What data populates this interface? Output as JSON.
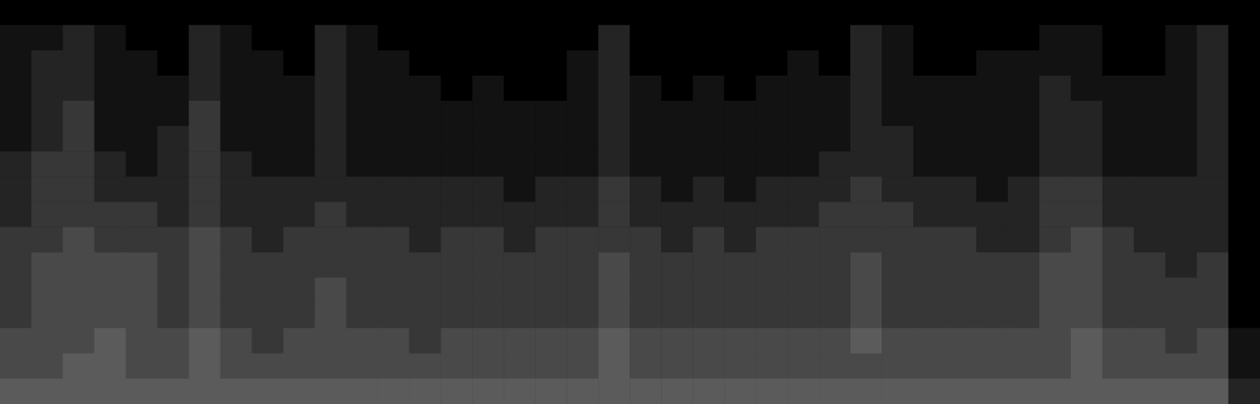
{
  "chart_data": {
    "type": "heatmap",
    "tick_labels": false,
    "grid": false,
    "color_range": [
      0,
      14
    ],
    "cells": [
      [
        0,
        0,
        0,
        0,
        0,
        0,
        0,
        0,
        0,
        0,
        0,
        0,
        0,
        0,
        0,
        0,
        0,
        0,
        0,
        0,
        0,
        0,
        0,
        0,
        0,
        0,
        0,
        0,
        0,
        0,
        0,
        0,
        0,
        0,
        0,
        0,
        0,
        0,
        0,
        0
      ],
      [
        1,
        1,
        2,
        1,
        0,
        0,
        2,
        1,
        0,
        0,
        2,
        1,
        0,
        0,
        0,
        0,
        0,
        0,
        0,
        2,
        0,
        0,
        0,
        0,
        0,
        0,
        0,
        2,
        1,
        0,
        0,
        0,
        0,
        1,
        1,
        0,
        0,
        1,
        2,
        0
      ],
      [
        1,
        2,
        2,
        1,
        1,
        0,
        2,
        1,
        1,
        0,
        2,
        1,
        1,
        0,
        0,
        0,
        0,
        0,
        1,
        2,
        0,
        0,
        0,
        0,
        0,
        1,
        0,
        2,
        1,
        0,
        0,
        1,
        1,
        1,
        1,
        0,
        0,
        1,
        2,
        0
      ],
      [
        1,
        2,
        2,
        1,
        1,
        1,
        2,
        1,
        1,
        1,
        2,
        1,
        1,
        1,
        0,
        1,
        0,
        0,
        1,
        2,
        1,
        0,
        1,
        0,
        1,
        1,
        1,
        2,
        1,
        1,
        1,
        1,
        1,
        2,
        1,
        1,
        1,
        1,
        2,
        0
      ],
      [
        1,
        2,
        3,
        1,
        1,
        1,
        3,
        1,
        1,
        1,
        2,
        1,
        1,
        1,
        1,
        1,
        1,
        1,
        1,
        2,
        1,
        1,
        1,
        1,
        1,
        1,
        1,
        2,
        1,
        1,
        1,
        1,
        1,
        2,
        2,
        1,
        1,
        1,
        2,
        0
      ],
      [
        1,
        2,
        3,
        1,
        1,
        2,
        3,
        1,
        1,
        1,
        2,
        1,
        1,
        1,
        1,
        1,
        1,
        1,
        1,
        2,
        1,
        1,
        1,
        1,
        1,
        1,
        1,
        2,
        2,
        1,
        1,
        1,
        1,
        2,
        2,
        1,
        1,
        1,
        2,
        0
      ],
      [
        2,
        3,
        3,
        2,
        1,
        2,
        3,
        2,
        1,
        1,
        2,
        1,
        1,
        1,
        1,
        1,
        1,
        1,
        1,
        2,
        1,
        1,
        1,
        1,
        1,
        1,
        2,
        2,
        2,
        1,
        1,
        1,
        1,
        2,
        2,
        1,
        1,
        1,
        2,
        0
      ],
      [
        2,
        3,
        3,
        2,
        2,
        2,
        3,
        2,
        2,
        2,
        2,
        2,
        2,
        2,
        2,
        2,
        1,
        2,
        2,
        3,
        2,
        1,
        2,
        1,
        2,
        2,
        2,
        3,
        2,
        2,
        2,
        1,
        2,
        3,
        3,
        2,
        2,
        2,
        2,
        0
      ],
      [
        2,
        3,
        3,
        3,
        3,
        2,
        3,
        2,
        2,
        2,
        3,
        2,
        2,
        2,
        2,
        2,
        2,
        2,
        2,
        3,
        2,
        2,
        2,
        2,
        2,
        2,
        3,
        3,
        3,
        2,
        2,
        2,
        2,
        3,
        3,
        2,
        2,
        2,
        2,
        0
      ],
      [
        3,
        3,
        4,
        3,
        3,
        3,
        4,
        3,
        2,
        3,
        3,
        3,
        3,
        2,
        3,
        3,
        2,
        3,
        3,
        3,
        3,
        2,
        3,
        2,
        3,
        3,
        3,
        3,
        3,
        3,
        3,
        2,
        2,
        3,
        4,
        3,
        2,
        2,
        2,
        0
      ],
      [
        3,
        4,
        4,
        4,
        4,
        3,
        4,
        3,
        3,
        3,
        3,
        3,
        3,
        3,
        3,
        3,
        3,
        3,
        3,
        4,
        3,
        3,
        3,
        3,
        3,
        3,
        3,
        4,
        3,
        3,
        3,
        3,
        3,
        4,
        4,
        3,
        3,
        2,
        3,
        0
      ],
      [
        3,
        4,
        4,
        4,
        4,
        3,
        4,
        3,
        3,
        3,
        4,
        3,
        3,
        3,
        3,
        3,
        3,
        3,
        3,
        4,
        3,
        3,
        3,
        3,
        3,
        3,
        3,
        4,
        3,
        3,
        3,
        3,
        3,
        4,
        4,
        3,
        3,
        3,
        3,
        0
      ],
      [
        3,
        4,
        4,
        4,
        4,
        3,
        4,
        3,
        3,
        3,
        4,
        3,
        3,
        3,
        3,
        3,
        3,
        3,
        3,
        4,
        3,
        3,
        3,
        3,
        3,
        3,
        3,
        4,
        3,
        3,
        3,
        3,
        3,
        4,
        4,
        3,
        3,
        3,
        3,
        0
      ],
      [
        4,
        4,
        4,
        5,
        4,
        4,
        5,
        4,
        3,
        4,
        4,
        4,
        4,
        3,
        4,
        4,
        4,
        4,
        4,
        5,
        4,
        4,
        4,
        4,
        4,
        4,
        4,
        5,
        4,
        4,
        4,
        4,
        4,
        4,
        5,
        4,
        4,
        3,
        4,
        1
      ],
      [
        4,
        4,
        5,
        5,
        4,
        4,
        5,
        4,
        4,
        4,
        4,
        4,
        4,
        4,
        4,
        4,
        4,
        4,
        4,
        5,
        4,
        4,
        4,
        4,
        4,
        4,
        4,
        4,
        4,
        4,
        4,
        4,
        4,
        4,
        5,
        4,
        4,
        4,
        4,
        1
      ],
      [
        5,
        5,
        5,
        5,
        5,
        5,
        5,
        5,
        5,
        5,
        5,
        5,
        5,
        5,
        5,
        5,
        5,
        5,
        5,
        5,
        5,
        5,
        5,
        5,
        5,
        5,
        5,
        5,
        5,
        5,
        5,
        5,
        5,
        5,
        5,
        5,
        5,
        5,
        5,
        2
      ]
    ]
  }
}
